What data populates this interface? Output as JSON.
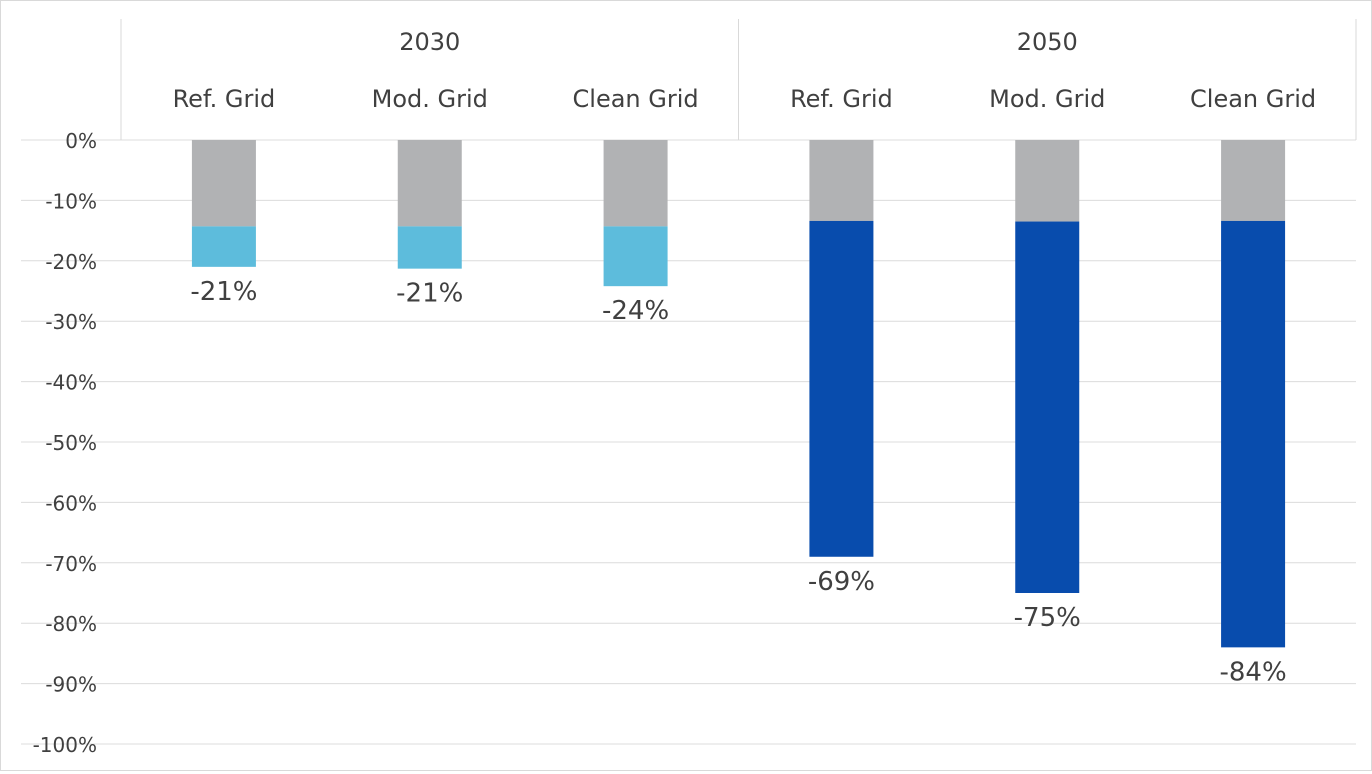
{
  "chart_data": {
    "type": "bar",
    "stacked": true,
    "groups": [
      {
        "label": "2030",
        "categories": [
          "Ref. Grid",
          "Mod. Grid",
          "Clean Grid"
        ]
      },
      {
        "label": "2050",
        "categories": [
          "Ref. Grid",
          "Mod. Grid",
          "Clean Grid"
        ]
      }
    ],
    "categories": [
      "Ref. Grid",
      "Mod. Grid",
      "Clean Grid",
      "Ref. Grid",
      "Mod. Grid",
      "Clean Grid"
    ],
    "series": [
      {
        "values": [
          -14.3,
          -14.3,
          -14.3,
          -13.4,
          -13.5,
          -13.4
        ],
        "color": "#b1b2b4"
      },
      {
        "values": [
          -6.7,
          -7.0,
          -9.9,
          -55.6,
          -61.5,
          -70.6
        ],
        "colors": [
          "#5dbcdc",
          "#5dbcdc",
          "#5dbcdc",
          "#084cad",
          "#084cad",
          "#084cad"
        ]
      }
    ],
    "totals": [
      -21,
      -21,
      -24,
      -69,
      -75,
      -84
    ],
    "data_labels": [
      "-21%",
      "-21%",
      "-24%",
      "-69%",
      "-75%",
      "-84%"
    ],
    "ylim": [
      -100,
      0
    ],
    "yticks": [
      0,
      -10,
      -20,
      -30,
      -40,
      -50,
      -60,
      -70,
      -80,
      -90,
      -100
    ],
    "ytick_labels": [
      "0%",
      "-10%",
      "-20%",
      "-30%",
      "-40%",
      "-50%",
      "-60%",
      "-70%",
      "-80%",
      "-90%",
      "-100%"
    ],
    "grid": true,
    "xlabel": "",
    "ylabel": "",
    "title": ""
  }
}
